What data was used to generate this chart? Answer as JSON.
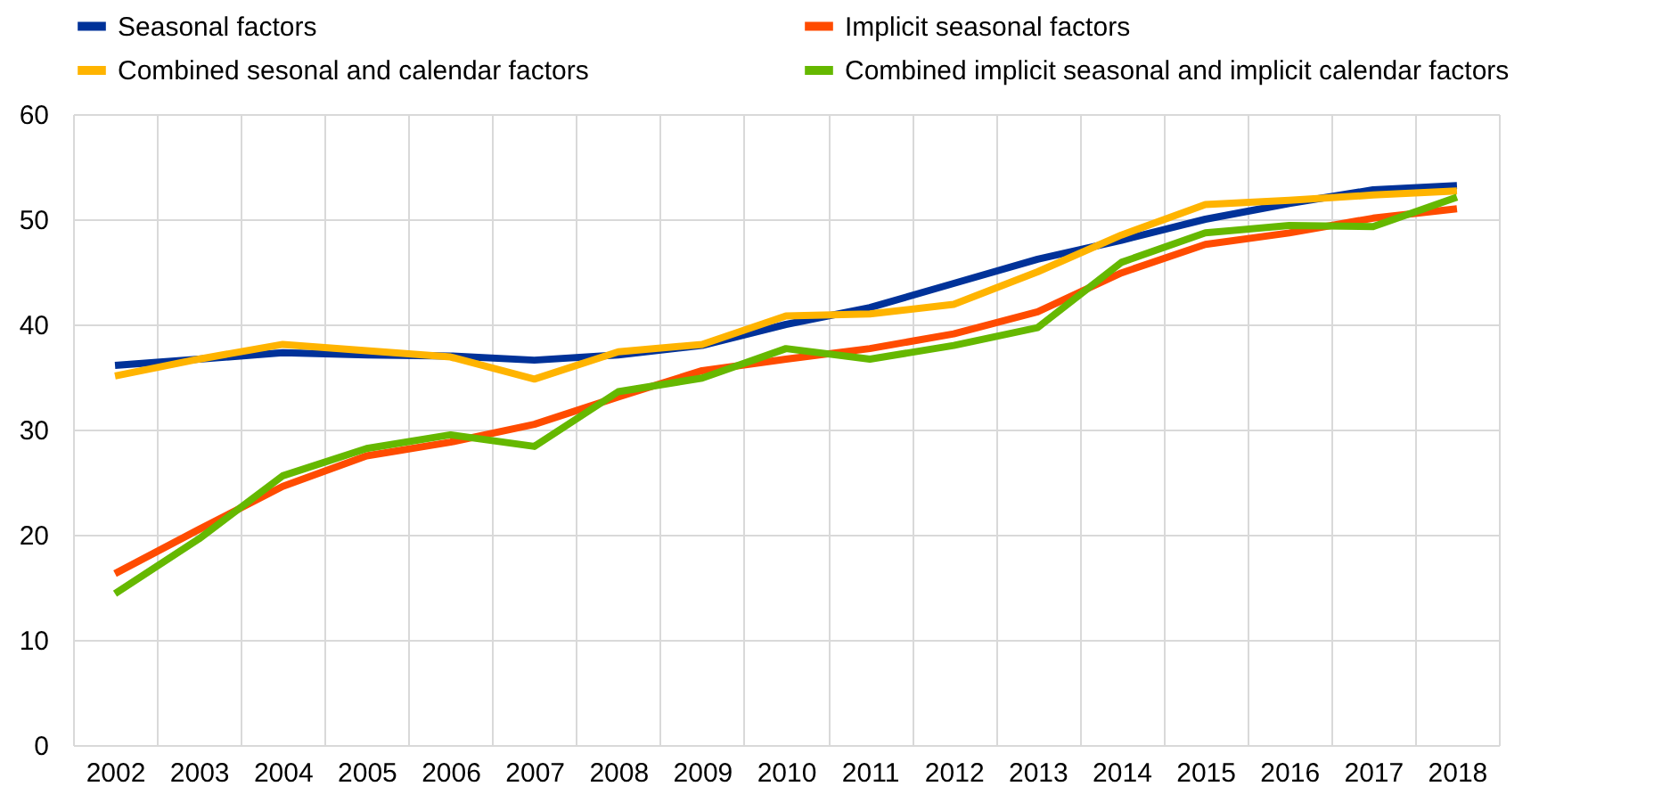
{
  "chart_data": {
    "type": "line",
    "categories": [
      "2002",
      "2003",
      "2004",
      "2005",
      "2006",
      "2007",
      "2008",
      "2009",
      "2010",
      "2011",
      "2012",
      "2013",
      "2014",
      "2015",
      "2016",
      "2017",
      "2018"
    ],
    "series": [
      {
        "name": "Seasonal factors",
        "color": "#003299",
        "values": [
          36.1,
          36.7,
          37.3,
          37.1,
          37.0,
          36.6,
          37.1,
          38.0,
          40.0,
          41.6,
          43.9,
          46.2,
          48.0,
          50.0,
          51.5,
          52.8,
          53.2
        ]
      },
      {
        "name": "Implicit seasonal factors",
        "color": "#ff4b00",
        "values": [
          16.3,
          20.5,
          24.6,
          27.5,
          28.8,
          30.5,
          33.1,
          35.6,
          36.7,
          37.7,
          39.1,
          41.2,
          44.9,
          47.6,
          48.7,
          50.1,
          51.0
        ]
      },
      {
        "name": "Combined sesonal and calendar factors",
        "color": "#ffb400",
        "values": [
          35.1,
          36.7,
          38.1,
          37.5,
          36.9,
          34.8,
          37.4,
          38.1,
          40.8,
          41.0,
          41.9,
          45.0,
          48.5,
          51.4,
          51.8,
          52.3,
          52.7
        ]
      },
      {
        "name": "Combined implicit seasonal and implicit calendar factors",
        "color": "#65b800",
        "values": [
          14.4,
          19.6,
          25.6,
          28.2,
          29.5,
          28.4,
          33.6,
          34.9,
          37.7,
          36.7,
          38.0,
          39.7,
          45.9,
          48.7,
          49.4,
          49.3,
          52.1
        ]
      }
    ],
    "ylim": [
      0,
      60
    ],
    "yticks": [
      0,
      10,
      20,
      30,
      40,
      50,
      60
    ],
    "grid": true,
    "legend": "top left",
    "line_style": "solid",
    "marker": "none"
  }
}
